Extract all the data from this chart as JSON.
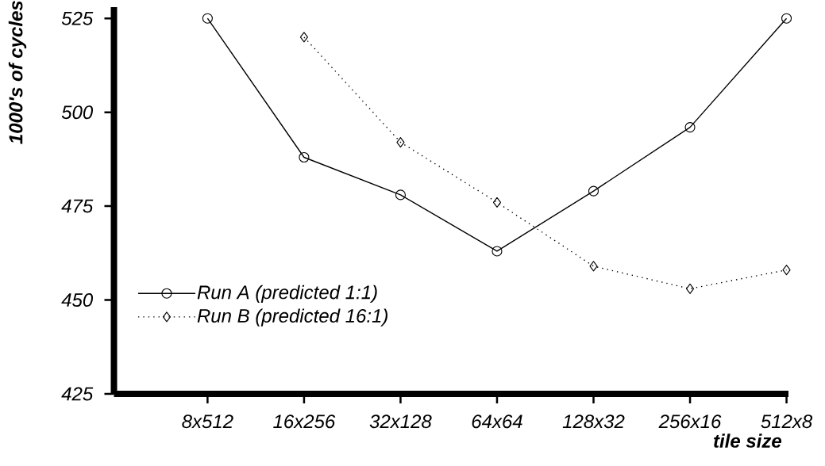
{
  "chart_data": {
    "type": "line",
    "xlabel": "tile size",
    "ylabel": "1000's of cycles",
    "categories": [
      "8x512",
      "16x256",
      "32x128",
      "64x64",
      "128x32",
      "256x16",
      "512x8"
    ],
    "ylim": [
      425,
      528
    ],
    "yticks": [
      425,
      450,
      475,
      500,
      525
    ],
    "legend": "bottom left",
    "series": [
      {
        "name": "Run A (predicted 1:1)",
        "color": "#000000",
        "marker": "circle",
        "line_style": "solid",
        "values": [
          525,
          488,
          478,
          463,
          479,
          496,
          525
        ]
      },
      {
        "name": "Run B (predicted 16:1)",
        "color": "#000000",
        "marker": "diamond",
        "line_style": "dotted",
        "values": [
          null,
          520,
          492,
          476,
          459,
          453,
          458
        ]
      }
    ]
  }
}
